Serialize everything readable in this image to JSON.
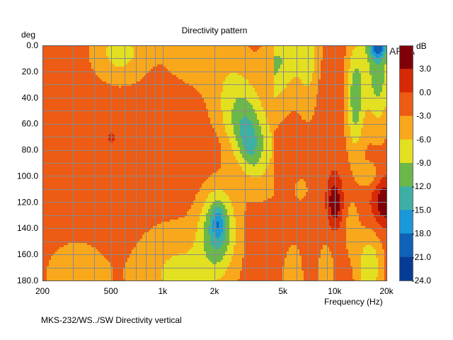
{
  "chart_data": {
    "type": "heatmap",
    "title": "Directivity pattern",
    "ylabel": "deg",
    "xlabel": "Frequency (Hz)",
    "x_scale": "log",
    "xlim": [
      200,
      20000
    ],
    "ylim": [
      0,
      180
    ],
    "y_reversed": true,
    "x_ticks": [
      200,
      500,
      1000,
      2000,
      5000,
      10000,
      20000
    ],
    "x_tick_labels": [
      "200",
      "500",
      "1k",
      "2k",
      "5k",
      "10k",
      "20k"
    ],
    "y_ticks": [
      0,
      20,
      40,
      60,
      80,
      100,
      120,
      140,
      160,
      180
    ],
    "y_tick_labels": [
      "0.0",
      "20.0",
      "40.0",
      "60.0",
      "80.0",
      "100.0",
      "120.0",
      "140.0",
      "160.0",
      "180.0"
    ],
    "grid": true,
    "colorbar": {
      "unit": "dB",
      "range": [
        -24,
        6
      ],
      "step": 3,
      "tick_labels": [
        "3.0",
        "0.0",
        "-3.0",
        "-6.0",
        "-9.0",
        "-12.0",
        "-15.0",
        "-18.0",
        "-21.0",
        "-24.0"
      ],
      "colors": [
        "#800008",
        "#d62a06",
        "#ee5b14",
        "#f9a81c",
        "#e2e021",
        "#6bb84a",
        "#3db0a3",
        "#1a98d8",
        "#0f62b8",
        "#073c96"
      ]
    },
    "bands_db": [
      3,
      0,
      -3,
      -6,
      -9,
      -12,
      -15,
      -18,
      -21
    ]
  },
  "watermark": "ARTA",
  "footer": "MKS-232/WS../SW  Directivity vertical"
}
